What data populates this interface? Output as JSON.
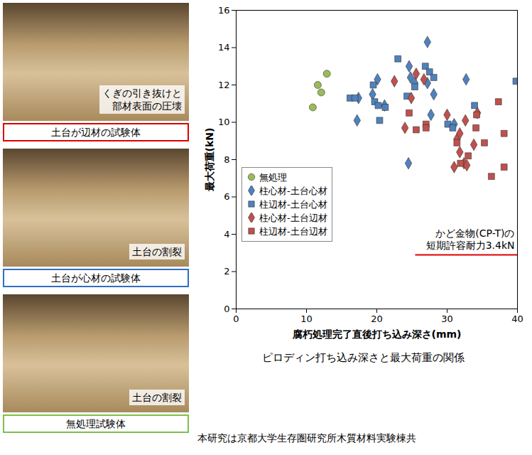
{
  "chart_data": {
    "type": "scatter",
    "title": "ピロディン打ち込み深さと最大荷重の関係",
    "x_label": "腐朽処理完了直後打ち込み深さ(mm)",
    "y_label": "最大荷重(kN)",
    "xlim": [
      0,
      40
    ],
    "xticks": [
      0,
      10,
      20,
      30,
      40
    ],
    "ylim": [
      0,
      16
    ],
    "yticks": [
      0,
      2,
      4,
      6,
      8,
      10,
      12,
      14,
      16
    ],
    "legend": "lower left",
    "series": [
      {
        "name": "無処理",
        "color": "#9bbb59",
        "marker": "circle",
        "x": [
          10.9,
          11.6,
          12.1,
          12.9
        ],
        "values": [
          10.8,
          12.0,
          11.6,
          12.6
        ]
      },
      {
        "name": "柱心材-土台心材",
        "color": "#4f81bd",
        "marker": "diamond",
        "x": [
          17.2,
          17.4,
          19.4,
          20.1,
          21.1,
          24.5,
          24.6,
          24.8,
          25.4,
          27.2,
          27.2,
          27.7,
          28.1,
          31.0,
          32.7
        ],
        "values": [
          10.1,
          11.3,
          11.5,
          12.3,
          10.9,
          7.8,
          13.0,
          12.4,
          12.1,
          14.3,
          12.1,
          10.4,
          11.5,
          9.9,
          12.3
        ]
      },
      {
        "name": "柱辺材-土台心材",
        "color": "#4f81bd",
        "marker": "square",
        "x": [
          16.2,
          16.9,
          19.5,
          19.7,
          20.2,
          20.4,
          21.2,
          23.0,
          24.3,
          25.4,
          26.9,
          27.5,
          28.1,
          30.1,
          30.8,
          33.9,
          39.8
        ],
        "values": [
          11.3,
          11.3,
          12.0,
          11.1,
          10.9,
          10.1,
          10.8,
          13.4,
          11.4,
          11.9,
          13.0,
          12.7,
          12.4,
          9.9,
          9.7,
          10.9,
          12.2
        ]
      },
      {
        "name": "柱心材-土台辺材",
        "color": "#c0504d",
        "marker": "diamond",
        "x": [
          22.5,
          24.0,
          24.9,
          25.6,
          26.7,
          30.0,
          31.0,
          31.4,
          31.8,
          31.8,
          32.4,
          32.6,
          32.8,
          33.8,
          34.3
        ],
        "values": [
          12.2,
          9.7,
          11.3,
          12.6,
          12.3,
          10.4,
          7.6,
          9.1,
          9.4,
          8.4,
          7.8,
          10.1,
          7.7,
          8.8,
          10.5
        ]
      },
      {
        "name": "柱辺材-土台辺材",
        "color": "#c0504d",
        "marker": "square",
        "x": [
          24.6,
          25.6,
          27.0,
          27.0,
          31.4,
          31.9,
          33.0,
          34.1,
          34.2,
          35.3,
          36.3,
          37.3,
          38.1,
          38.1
        ],
        "values": [
          10.5,
          9.6,
          9.9,
          9.7,
          8.9,
          7.8,
          8.2,
          9.7,
          10.4,
          8.9,
          7.1,
          11.1,
          9.4,
          7.6
        ]
      }
    ],
    "annotations": [
      {
        "text": [
          "かど金物(CP-T)の",
          "短期許容耐力3.4kN"
        ],
        "y": 2.9,
        "x": [
          25.5,
          40
        ],
        "color": "#e00000"
      }
    ]
  },
  "photo_panels": [
    {
      "annotation": [
        "くぎの引き抜けと",
        "部材表面の圧壊"
      ],
      "label": "土台が辺材の試験体",
      "color": "#e00000"
    },
    {
      "annotation": [
        "土台の割裂"
      ],
      "label": "土台が心材の試験体",
      "color": "#2f6fc0"
    },
    {
      "annotation": [
        "土台の割裂"
      ],
      "label": "無処理試験体",
      "color": "#7cc04a"
    }
  ],
  "footer": "本研究は京都大学生存圏研究所木質材料実験棟共"
}
